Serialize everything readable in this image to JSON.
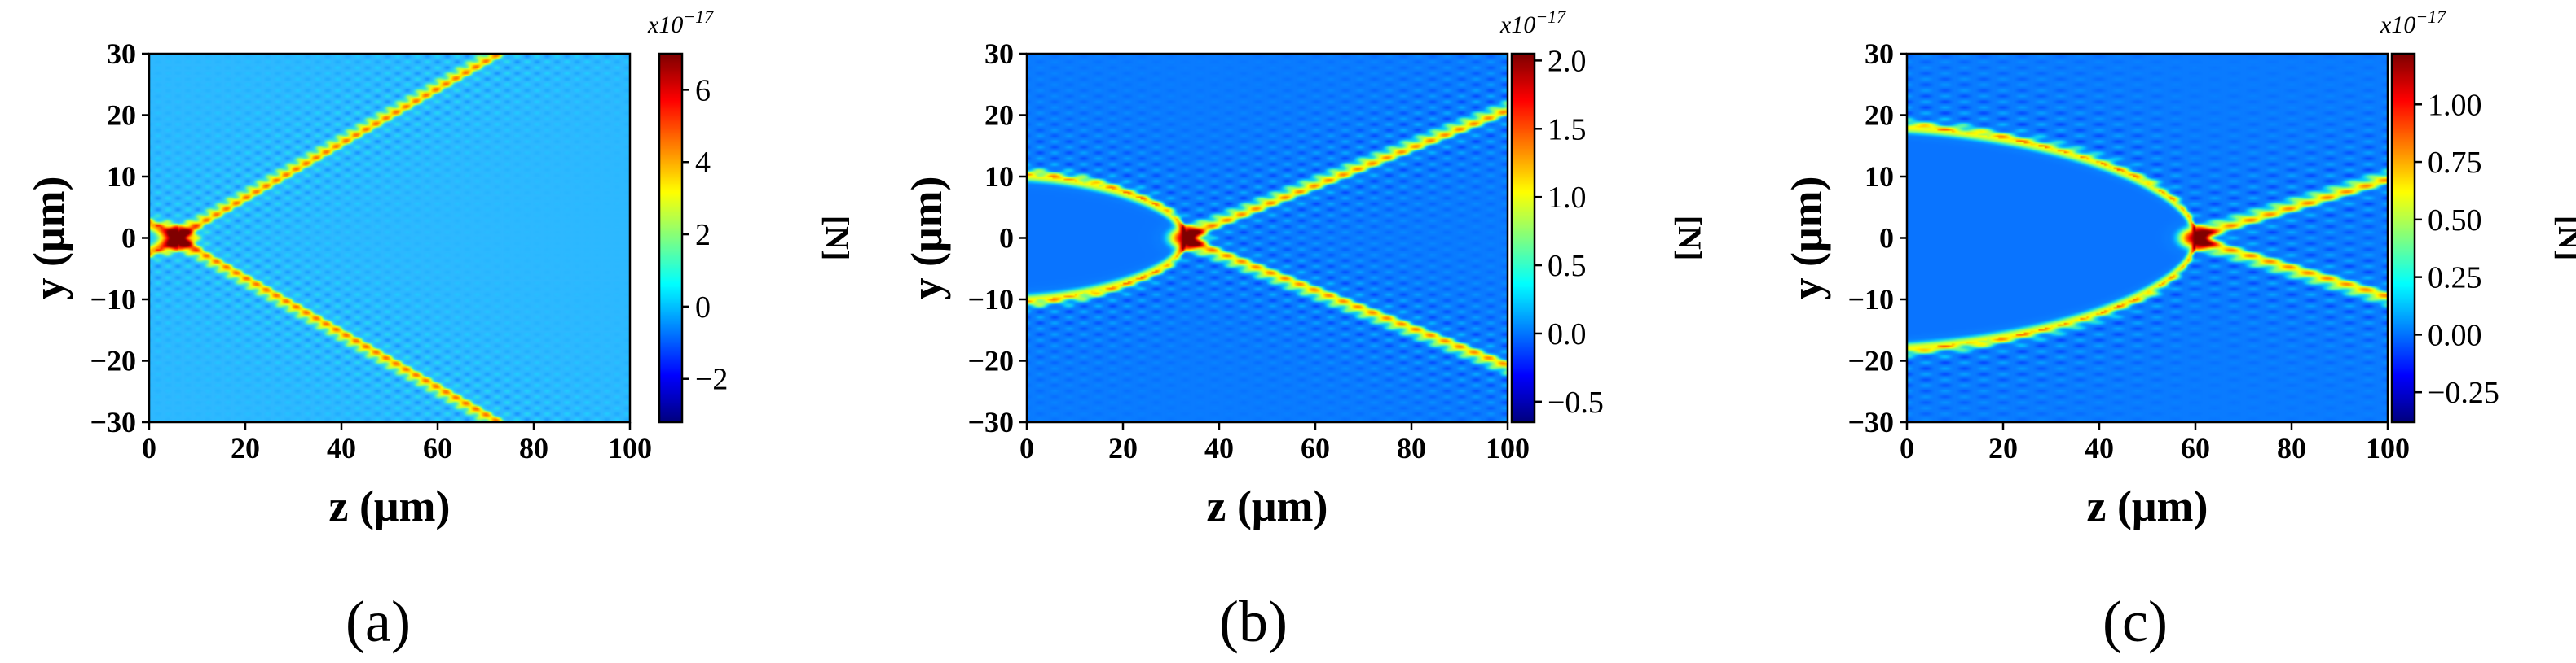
{
  "chart_data": [
    {
      "type": "heatmap",
      "panel_label": "(a)",
      "xlabel": "z (μm)",
      "ylabel": "y (μm)",
      "xlim": [
        0,
        100
      ],
      "ylim": [
        -30,
        30
      ],
      "x_ticks": [
        "0",
        "20",
        "40",
        "60",
        "80",
        "100"
      ],
      "y_ticks": [
        "30",
        "20",
        "10",
        "0",
        "−10",
        "−20",
        "−30"
      ],
      "colorbar": {
        "label": "[N]",
        "scale_label": "x10",
        "scale_exponent": "−17",
        "range": [
          -3.2,
          7.0
        ],
        "ticks": [
          -2,
          0,
          2,
          4,
          6
        ],
        "tick_labels": [
          "−2",
          "0",
          "2",
          "4",
          "6"
        ]
      },
      "field": {
        "focus_z": 6,
        "wave_half_angle_deg": 24,
        "curved_envelope": false,
        "aperture_half_width": 1.5,
        "background": "#2eb8ff"
      }
    },
    {
      "type": "heatmap",
      "panel_label": "(b)",
      "xlabel": "z (μm)",
      "ylabel": "y (μm)",
      "xlim": [
        0,
        100
      ],
      "ylim": [
        -30,
        30
      ],
      "x_ticks": [
        "0",
        "20",
        "40",
        "60",
        "80",
        "100"
      ],
      "y_ticks": [
        "30",
        "20",
        "10",
        "0",
        "−10",
        "−20",
        "−30"
      ],
      "colorbar": {
        "label": "[N]",
        "scale_label": "x10",
        "scale_exponent": "−17",
        "range": [
          -0.65,
          2.05
        ],
        "ticks": [
          -0.5,
          0.0,
          0.5,
          1.0,
          1.5,
          2.0
        ],
        "tick_labels": [
          "−0.5",
          "0.0",
          "0.5",
          "1.0",
          "1.5",
          "2.0"
        ]
      },
      "field": {
        "focus_z": 33,
        "wave_half_angle_deg": 17,
        "curved_envelope": true,
        "aperture_half_width": 8.5,
        "background": "#0a7bff"
      }
    },
    {
      "type": "heatmap",
      "panel_label": "(c)",
      "xlabel": "z (μm)",
      "ylabel": "y (μm)",
      "xlim": [
        0,
        100
      ],
      "ylim": [
        -30,
        30
      ],
      "x_ticks": [
        "0",
        "20",
        "40",
        "60",
        "80",
        "100"
      ],
      "y_ticks": [
        "30",
        "20",
        "10",
        "0",
        "−10",
        "−20",
        "−30"
      ],
      "colorbar": {
        "label": "[N]",
        "scale_label": "x10",
        "scale_exponent": "−17",
        "range": [
          -0.38,
          1.22
        ],
        "ticks": [
          -0.25,
          0.0,
          0.25,
          0.5,
          0.75,
          1.0
        ],
        "tick_labels": [
          "−0.25",
          "0.00",
          "0.25",
          "0.50",
          "0.75",
          "1.00"
        ]
      },
      "field": {
        "focus_z": 60,
        "wave_half_angle_deg": 13,
        "curved_envelope": true,
        "aperture_half_width": 15,
        "background": "#0a7bff"
      }
    }
  ]
}
